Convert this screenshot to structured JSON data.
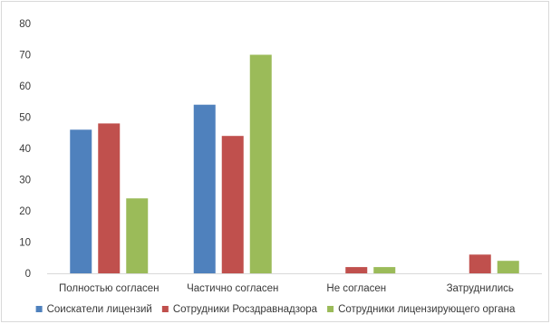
{
  "chart_data": {
    "type": "bar",
    "title": "",
    "xlabel": "",
    "ylabel": "",
    "categories": [
      "Полностью согласен",
      "Частично согласен",
      "Не согласен",
      "Затруднились"
    ],
    "series": [
      {
        "name": "Соискатели лицензий",
        "color": "#4f81bd",
        "values": [
          46,
          54,
          0,
          0
        ]
      },
      {
        "name": "Сотрудники Росздравнадзора",
        "color": "#c0504d",
        "values": [
          48,
          44,
          2,
          6
        ]
      },
      {
        "name": "Сотрудники лицензирующего органа",
        "color": "#9bbb59",
        "values": [
          24,
          70,
          2,
          4
        ]
      }
    ],
    "ylim": [
      0,
      80
    ],
    "yticks": [
      "0",
      "10",
      "20",
      "30",
      "40",
      "50",
      "60",
      "70",
      "80"
    ],
    "grid": false,
    "legend_position": "bottom"
  }
}
